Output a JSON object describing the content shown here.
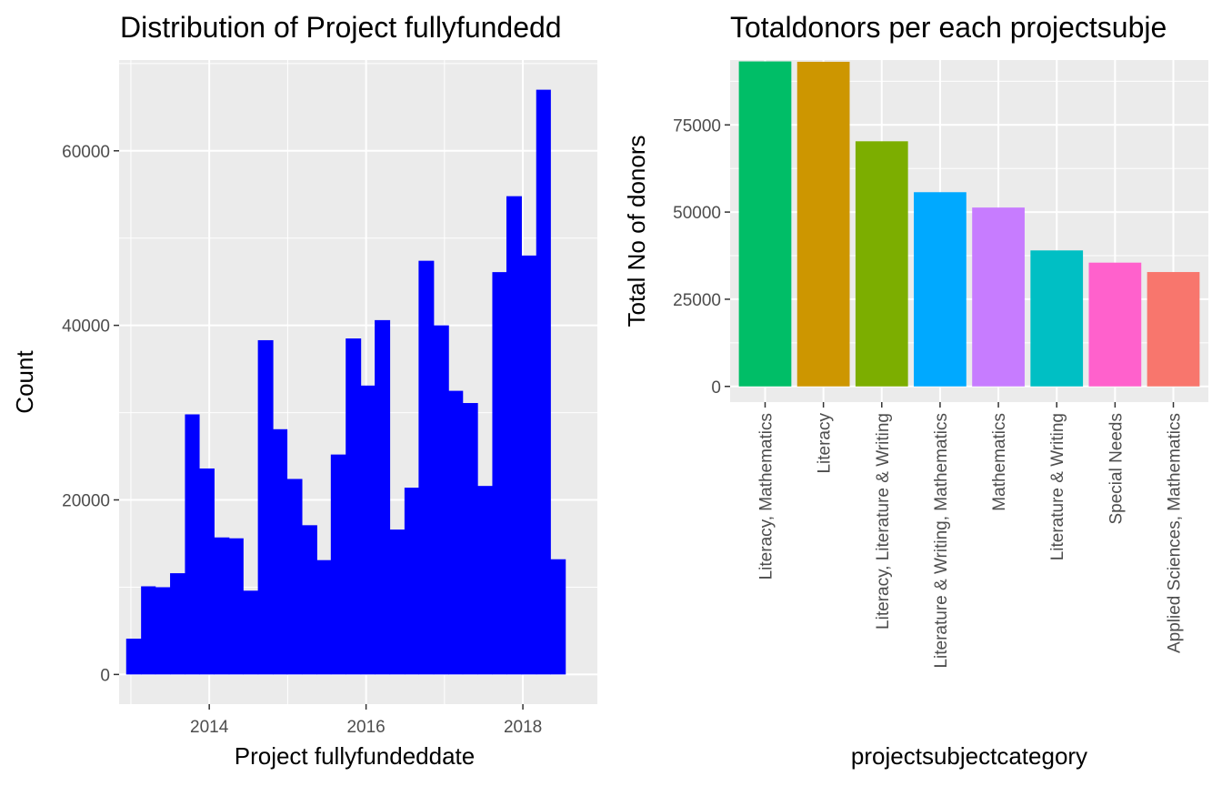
{
  "chart_data": [
    {
      "type": "bar",
      "subtype": "histogram",
      "title": "Distribution of Project fullyfundedd",
      "xlabel": "Project fullyfundeddate",
      "ylabel": "Count",
      "bar_color": "#0000ff",
      "panel_background": "#ebebeb",
      "grid": true,
      "xlim": [
        2012.85,
        2018.95
      ],
      "ylim": [
        -3400,
        70400
      ],
      "x_ticks": [
        2014,
        2016,
        2018
      ],
      "x_tick_labels": [
        "2014",
        "2016",
        "2018"
      ],
      "y_ticks": [
        0,
        20000,
        40000,
        60000
      ],
      "y_tick_labels": [
        "0",
        "20000",
        "40000",
        "60000"
      ],
      "bin_edges": [
        2012.94,
        2013.13,
        2013.31,
        2013.5,
        2013.69,
        2013.87,
        2014.06,
        2014.25,
        2014.43,
        2014.62,
        2014.81,
        2014.99,
        2015.18,
        2015.37,
        2015.55,
        2015.74,
        2015.93,
        2016.11,
        2016.3,
        2016.49,
        2016.67,
        2016.86,
        2017.05,
        2017.23,
        2017.42,
        2017.61,
        2017.79,
        2017.98,
        2018.17,
        2018.35,
        2018.54
      ],
      "counts": [
        4100,
        10100,
        10000,
        11600,
        29800,
        23600,
        15700,
        15600,
        9600,
        38300,
        28100,
        22400,
        17100,
        13100,
        25200,
        38500,
        33100,
        40600,
        16600,
        21400,
        47400,
        40000,
        32500,
        31100,
        21600,
        46100,
        54800,
        48000,
        67000,
        13200
      ]
    },
    {
      "type": "bar",
      "title": "Totaldonors per each projectsubje",
      "xlabel": "projectsubjectcategory",
      "ylabel": "Total No of donors",
      "panel_background": "#ebebeb",
      "grid": true,
      "ylim": [
        -4500,
        93600
      ],
      "y_ticks": [
        0,
        25000,
        50000,
        75000
      ],
      "y_tick_labels": [
        "0",
        "25000",
        "50000",
        "75000"
      ],
      "categories": [
        "Literacy, Mathematics",
        "Literacy",
        "Literacy, Literature & Writing",
        "Literature & Writing, Mathematics",
        "Mathematics",
        "Literature & Writing",
        "Special Needs",
        "Applied Sciences, Mathematics"
      ],
      "values": [
        93200,
        93100,
        70300,
        55700,
        51300,
        39000,
        35500,
        32800
      ],
      "colors": [
        "#00be67",
        "#cd9600",
        "#7cae00",
        "#00a9ff",
        "#c77cff",
        "#00bfc4",
        "#ff61cc",
        "#f8766d"
      ]
    }
  ]
}
